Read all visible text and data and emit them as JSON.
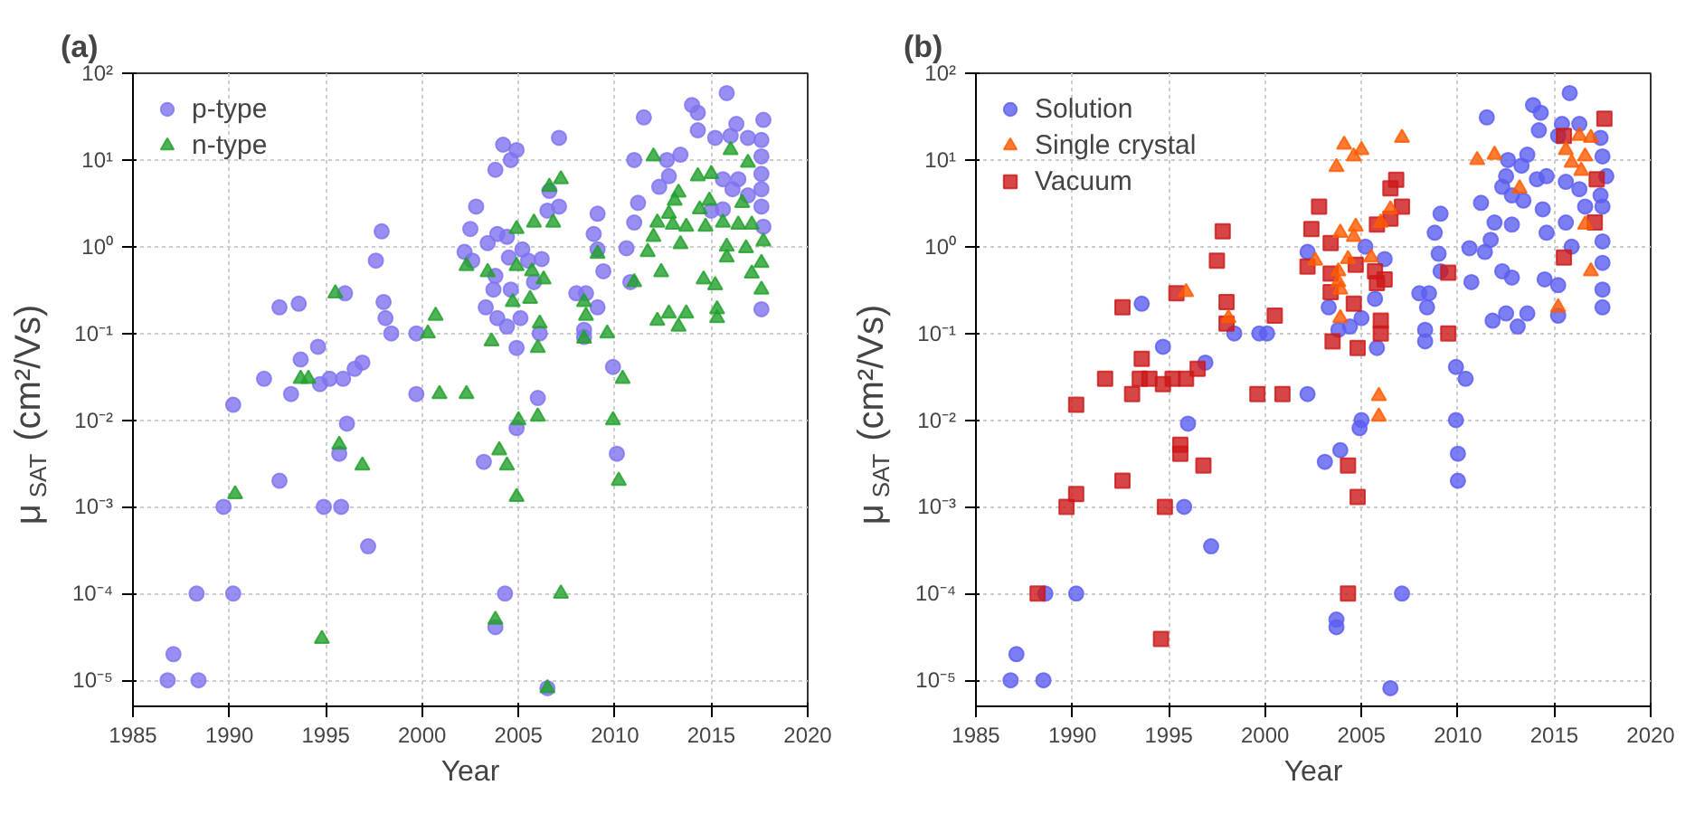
{
  "chart_data": [
    {
      "type": "scatter",
      "title": "(a)",
      "xlabel": "Year",
      "ylabel": "μ$_{SAT}$ (cm²/Vs)",
      "log": "y",
      "grid": true,
      "legend": "top left",
      "xlim": [
        1985,
        2020
      ],
      "xticks": [
        1985,
        1990,
        1995,
        2000,
        2005,
        2010,
        2015,
        2020
      ],
      "ylim": [
        5e-06,
        100
      ],
      "yticks": [
        {
          "value": 1e-05,
          "label": "10⁻⁵"
        },
        {
          "value": 0.0001,
          "label": "10⁻⁴"
        },
        {
          "value": 0.001,
          "label": "10⁻³"
        },
        {
          "value": 0.01,
          "label": "10⁻²"
        },
        {
          "value": 0.1,
          "label": "10⁻¹"
        },
        {
          "value": 1,
          "label": "10⁰"
        },
        {
          "value": 10,
          "label": "10¹"
        },
        {
          "value": 100,
          "label": "10²"
        }
      ],
      "series": [
        {
          "name": "p-type",
          "color": "#8073f0",
          "marker": "circle",
          "x": [
            2015.8,
            2014.0,
            2014.3,
            2011.5,
            2017.7,
            2016.3,
            2014.3,
            2007.1,
            2004.2,
            2004.9,
            2004.6,
            2003.8,
            2011.0,
            2012.7,
            2013.4,
            2015.2,
            2016.0,
            2016.9,
            2017.6,
            2017.6,
            2017.6,
            2017.6,
            2017.6,
            2016.9,
            2016.1,
            2016.4,
            2015.6,
            2012.8,
            2012.3,
            2011.2,
            2015.0,
            2015.6,
            2017.7,
            2011.0,
            2009.1,
            2007.1,
            2006.5,
            2006.6,
            2002.8,
            2002.5,
            2003.9,
            2004.4,
            2003.4,
            2002.2,
            2002.6,
            2004.5,
            2005.5,
            2006.2,
            2005.2,
            2008.9,
            2009.1,
            2010.6,
            2009.4,
            2008.5,
            2008.0,
            2009.1,
            2005.8,
            2003.8,
            2003.7,
            2004.6,
            2003.3,
            2003.9,
            2004.4,
            2005.1,
            2006.1,
            2004.9,
            2008.4,
            2008.4,
            2010.8,
            2017.6,
            1997.9,
            1997.6,
            1998.0,
            1998.1,
            1998.4,
            1999.7,
            1996.0,
            1992.6,
            1993.6,
            1994.6,
            1993.7,
            1991.8,
            1993.2,
            1990.2,
            1994.7,
            1995.2,
            1995.9,
            1996.5,
            1996.9,
            1999.7,
            1996.1,
            1995.7,
            1992.6,
            1989.7,
            1994.9,
            1995.8,
            1997.2,
            1988.3,
            1990.2,
            1987.1,
            1986.8,
            1988.4,
            2009.9,
            2006.0,
            2004.9,
            2003.2,
            2010.1,
            2004.3,
            2003.8,
            2006.5
          ],
          "values": [
            59,
            43,
            35,
            31,
            29,
            26,
            22,
            18,
            15,
            13,
            10,
            7.7,
            10,
            10,
            11.5,
            18,
            19,
            18,
            17,
            11,
            6.9,
            4.6,
            2.9,
            3.9,
            4.6,
            6.0,
            6.0,
            6.5,
            4.9,
            3.2,
            2.6,
            2.7,
            1.7,
            1.9,
            2.4,
            2.9,
            2.6,
            4.4,
            2.9,
            1.6,
            1.4,
            1.3,
            1.1,
            0.87,
            0.69,
            0.75,
            0.69,
            0.72,
            0.93,
            1.4,
            0.93,
            0.96,
            0.52,
            0.29,
            0.29,
            0.2,
            0.39,
            0.46,
            0.32,
            0.32,
            0.2,
            0.15,
            0.12,
            0.15,
            0.1,
            0.068,
            0.11,
            0.091,
            0.39,
            0.19,
            1.5,
            0.69,
            0.23,
            0.15,
            0.1,
            0.1,
            0.29,
            0.2,
            0.22,
            0.07,
            0.05,
            0.03,
            0.02,
            0.015,
            0.026,
            0.03,
            0.03,
            0.039,
            0.046,
            0.02,
            0.0091,
            0.0041,
            0.002,
            0.001,
            0.001,
            0.001,
            0.00035,
            0.0001,
            0.0001,
            2e-05,
            1e-05,
            1e-05,
            0.041,
            0.018,
            0.0081,
            0.0033,
            0.0041,
            0.0001,
            4.1e-05,
            8.1e-06
          ]
        },
        {
          "name": "n-type",
          "color": "#22a02c",
          "marker": "triangle",
          "x": [
            2012.0,
            2016.0,
            2016.9,
            2014.3,
            2015.0,
            2007.2,
            2006.6,
            2013.3,
            2013.1,
            2014.9,
            2014.4,
            2016.6,
            2012.8,
            2012.2,
            2013.0,
            2013.7,
            2014.7,
            2015.6,
            2016.4,
            2017.1,
            2017.7,
            2012.0,
            2011.7,
            2013.4,
            2015.8,
            2016.8,
            2015.8,
            2017.6,
            2006.8,
            2005.8,
            2004.9,
            2009.1,
            2002.3,
            2003.4,
            2004.9,
            2005.7,
            2006.3,
            2011.0,
            2012.4,
            2014.6,
            2015.2,
            2017.1,
            2017.6,
            2004.7,
            2005.6,
            2008.4,
            2008.5,
            2006.1,
            2009.6,
            2012.2,
            2012.8,
            2013.3,
            2013.7,
            2015.3,
            2015.3,
            2000.7,
            2000.3,
            2003.6,
            2006.0,
            2008.4,
            1995.5,
            1993.7,
            1994.1,
            2000.9,
            2002.3,
            2010.4,
            2005.0,
            2006.0,
            2009.9,
            1995.7,
            1996.9,
            2004.0,
            2004.4,
            2004.9,
            2010.2,
            1990.3,
            2007.2,
            2003.8,
            1994.8,
            2006.5
          ],
          "values": [
            11,
            13,
            9.3,
            6.5,
            6.9,
            6.0,
            4.9,
            4.2,
            3.4,
            3.4,
            2.7,
            3.2,
            2.4,
            1.9,
            1.8,
            1.7,
            1.7,
            1.9,
            1.8,
            1.8,
            1.15,
            1.3,
            0.87,
            1.07,
            1.0,
            0.96,
            0.75,
            0.65,
            1.9,
            1.9,
            1.6,
            0.83,
            0.6,
            0.51,
            0.6,
            0.52,
            0.42,
            0.39,
            0.51,
            0.42,
            0.36,
            0.49,
            0.32,
            0.23,
            0.25,
            0.23,
            0.16,
            0.13,
            0.1,
            0.14,
            0.17,
            0.12,
            0.17,
            0.19,
            0.15,
            0.16,
            0.1,
            0.081,
            0.068,
            0.087,
            0.29,
            0.03,
            0.03,
            0.02,
            0.02,
            0.03,
            0.01,
            0.011,
            0.01,
            0.0052,
            0.003,
            0.0045,
            0.003,
            0.0013,
            0.002,
            0.0014,
            0.0001,
            5e-05,
            3e-05,
            8.1e-06
          ]
        }
      ]
    },
    {
      "type": "scatter",
      "title": "(b)",
      "xlabel": "Year",
      "ylabel": "μ$_{SAT}$ (cm²/Vs)",
      "log": "y",
      "grid": true,
      "legend": "top left",
      "xlim": [
        1985,
        2020
      ],
      "xticks": [
        1985,
        1990,
        1995,
        2000,
        2005,
        2010,
        2015,
        2020
      ],
      "ylim": [
        5e-06,
        100
      ],
      "yticks": [
        {
          "value": 1e-05,
          "label": "10⁻⁵"
        },
        {
          "value": 0.0001,
          "label": "10⁻⁴"
        },
        {
          "value": 0.001,
          "label": "10⁻³"
        },
        {
          "value": 0.01,
          "label": "10⁻²"
        },
        {
          "value": 0.1,
          "label": "10⁻¹"
        },
        {
          "value": 1,
          "label": "10⁰"
        },
        {
          "value": 10,
          "label": "10¹"
        },
        {
          "value": 100,
          "label": "10²"
        }
      ],
      "series": [
        {
          "name": "Solution",
          "color": "#5b5ef0",
          "marker": "circle",
          "x": [
            2015.8,
            2013.9,
            2014.3,
            2011.5,
            2015.4,
            2014.2,
            2015.2,
            2016.3,
            2017.4,
            2017.5,
            2017.7,
            2017.4,
            2017.5,
            2012.6,
            2013.3,
            2013.6,
            2014.1,
            2014.6,
            2012.5,
            2012.3,
            2011.2,
            2012.8,
            2013.4,
            2014.4,
            2015.6,
            2016.3,
            2016.6,
            2015.6,
            2015.9,
            2017.5,
            2017.5,
            2017.5,
            2017.5,
            2014.6,
            2012.8,
            2011.9,
            2011.7,
            2010.6,
            2011.4,
            2009.1,
            2008.8,
            2009.0,
            2009.1,
            2010.7,
            2012.3,
            2012.8,
            2014.5,
            2015.2,
            2011.8,
            2012.5,
            2013.1,
            2013.6,
            2015.2,
            2008.0,
            2008.5,
            2008.4,
            2008.3,
            2008.3,
            2005.2,
            2006.2,
            2002.2,
            2003.3,
            2003.8,
            2004.4,
            2005.0,
            2005.7,
            2005.8,
            1999.7,
            2000.1,
            1998.4,
            1993.6,
            1994.7,
            1996.9,
            2002.2,
            1996.0,
            1995.8,
            1997.2,
            1988.6,
            1990.2,
            1987.1,
            1986.8,
            1988.5,
            2005.0,
            2004.9,
            2003.9,
            2003.1,
            2003.7,
            2003.7,
            2006.5,
            2007.1,
            2009.9,
            2010.4,
            2009.9,
            2010.0,
            2010.0
          ],
          "values": [
            59,
            43,
            35,
            31,
            26,
            22,
            19,
            26,
            18,
            11,
            6.5,
            3.9,
            2.9,
            10,
            8.6,
            11.5,
            6.0,
            6.5,
            6.5,
            4.9,
            3.2,
            3.9,
            3.4,
            2.7,
            5.6,
            4.6,
            2.9,
            1.9,
            1.0,
            1.15,
            0.65,
            0.32,
            0.2,
            1.45,
            1.8,
            1.9,
            1.2,
            0.96,
            0.87,
            2.4,
            1.45,
            0.83,
            0.52,
            0.39,
            0.52,
            0.44,
            0.42,
            0.36,
            0.14,
            0.17,
            0.12,
            0.17,
            0.16,
            0.29,
            0.29,
            0.2,
            0.11,
            0.081,
            1.0,
            0.72,
            0.87,
            0.2,
            0.11,
            0.12,
            0.15,
            0.25,
            0.068,
            0.1,
            0.1,
            0.1,
            0.22,
            0.07,
            0.046,
            0.02,
            0.0091,
            0.001,
            0.00035,
            0.0001,
            0.0001,
            2e-05,
            1e-05,
            1e-05,
            0.01,
            0.0081,
            0.0045,
            0.0033,
            5e-05,
            4.1e-05,
            8.1e-06,
            0.0001,
            0.041,
            0.03,
            0.01,
            0.0041,
            0.002
          ]
        },
        {
          "name": "Single crystal",
          "color": "#ff5a00",
          "marker": "triangle",
          "x": [
            2007.1,
            2004.1,
            2005.0,
            2004.6,
            2003.7,
            2011.0,
            2011.9,
            2015.6,
            2016.3,
            2016.9,
            2016.6,
            2015.9,
            2016.4,
            2013.2,
            2006.5,
            2006.0,
            2004.7,
            2003.9,
            2004.6,
            2016.6,
            2016.9,
            2015.2,
            2002.6,
            2004.3,
            2005.5,
            2003.8,
            2003.8,
            2003.9,
            2003.9,
            1995.9,
            1998.1,
            2005.9,
            2005.9
          ],
          "values": [
            18,
            15,
            13,
            11,
            8.3,
            10,
            11.5,
            13,
            19,
            18,
            11,
            9.3,
            7.5,
            4.7,
            2.7,
            1.9,
            1.7,
            1.45,
            1.3,
            1.8,
            0.52,
            0.2,
            0.69,
            0.72,
            0.75,
            0.52,
            0.39,
            0.32,
            0.15,
            0.3,
            0.15,
            0.019,
            0.011
          ]
        },
        {
          "name": "Vacuum",
          "color": "#cc1818",
          "marker": "square",
          "x": [
            2017.6,
            2015.5,
            2017.2,
            2017.1,
            2015.5,
            2006.8,
            2006.5,
            2007.1,
            2006.5,
            2005.8,
            2002.8,
            2002.4,
            2003.4,
            2002.2,
            2003.4,
            2003.4,
            2004.7,
            2005.7,
            2006.2,
            2005.8,
            2004.6,
            2006.0,
            2006.0,
            2003.5,
            2004.8,
            2009.5,
            2009.5,
            1997.8,
            1997.5,
            1998.0,
            1998.0,
            2000.5,
            1995.4,
            1992.6,
            1993.6,
            1991.7,
            1993.1,
            1993.5,
            1994.0,
            1994.7,
            1995.2,
            1995.9,
            1996.5,
            1990.2,
            1999.6,
            2000.9,
            1995.6,
            1995.6,
            1996.8,
            1992.6,
            1990.2,
            1989.7,
            1994.8,
            2004.3,
            2004.8,
            1988.2,
            2004.3,
            1994.6
          ],
          "values": [
            30,
            19,
            6.0,
            1.9,
            0.75,
            5.9,
            4.7,
            2.9,
            2.1,
            1.8,
            2.9,
            1.6,
            1.1,
            0.59,
            0.49,
            0.3,
            0.62,
            0.52,
            0.42,
            0.38,
            0.22,
            0.14,
            0.1,
            0.081,
            0.068,
            0.5,
            0.1,
            1.5,
            0.69,
            0.23,
            0.13,
            0.16,
            0.29,
            0.2,
            0.051,
            0.03,
            0.02,
            0.03,
            0.03,
            0.026,
            0.03,
            0.03,
            0.039,
            0.015,
            0.02,
            0.02,
            0.0052,
            0.0041,
            0.003,
            0.002,
            0.0014,
            0.001,
            0.001,
            0.003,
            0.0013,
            0.0001,
            0.0001,
            3e-05
          ]
        }
      ]
    }
  ]
}
